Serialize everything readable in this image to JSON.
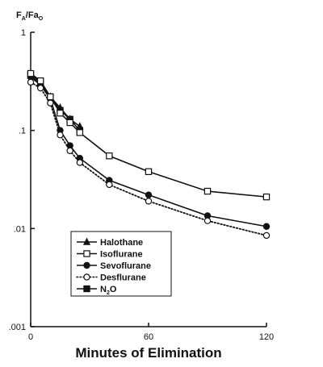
{
  "chart_data": {
    "type": "line",
    "title": "",
    "ylabel": {
      "main_1": "F",
      "sub_1": "A",
      "slash": "/",
      "main_2": "Fa",
      "sub_2": "O"
    },
    "xlabel": "Minutes of Elimination",
    "y_scale": "log",
    "ylim": [
      0.001,
      1
    ],
    "xlim": [
      0,
      120
    ],
    "xticks": [
      0,
      60,
      120
    ],
    "yticks": [
      0.001,
      0.01,
      0.1,
      1
    ],
    "ytick_labels": [
      ".001",
      ".01",
      ".1",
      "1"
    ],
    "xtick_labels": [
      "0",
      "60",
      "120"
    ],
    "grid": false,
    "legend_position": "lower-center",
    "series": [
      {
        "name": "Halothane",
        "marker": "triangle-filled",
        "line": "solid",
        "x": [
          0,
          5,
          10,
          15,
          20,
          25
        ],
        "y": [
          0.36,
          0.3,
          0.22,
          0.17,
          0.13,
          0.11
        ]
      },
      {
        "name": "Isoflurane",
        "marker": "square-open",
        "line": "solid",
        "x": [
          0,
          5,
          10,
          15,
          20,
          25,
          40,
          60,
          90,
          120
        ],
        "y": [
          0.38,
          0.32,
          0.22,
          0.15,
          0.12,
          0.095,
          0.055,
          0.038,
          0.024,
          0.021
        ]
      },
      {
        "name": "Sevoflurane",
        "marker": "circle-filled",
        "line": "solid",
        "x": [
          0,
          5,
          10,
          15,
          20,
          25,
          40,
          60,
          90,
          120
        ],
        "y": [
          0.35,
          0.29,
          0.21,
          0.1,
          0.07,
          0.052,
          0.031,
          0.022,
          0.0135,
          0.0105
        ]
      },
      {
        "name": "Desflurane",
        "marker": "circle-open",
        "line": "dotted",
        "x": [
          0,
          5,
          10,
          15,
          20,
          25,
          40,
          60,
          90,
          120
        ],
        "y": [
          0.31,
          0.27,
          0.19,
          0.09,
          0.062,
          0.047,
          0.028,
          0.019,
          0.012,
          0.0085
        ]
      },
      {
        "name": "N2O",
        "marker": "square-filled",
        "line": "solid",
        "x": [
          0,
          5,
          10,
          15,
          20,
          25
        ],
        "y": [
          0.37,
          0.31,
          0.22,
          0.16,
          0.13,
          0.1
        ]
      }
    ],
    "legend_labels": [
      {
        "main": "Halothane"
      },
      {
        "main": "Isoflurane"
      },
      {
        "main": "Sevoflurane"
      },
      {
        "main": "Desflurane"
      },
      {
        "main": "N",
        "sub": "2",
        "suffix": "O"
      }
    ]
  }
}
